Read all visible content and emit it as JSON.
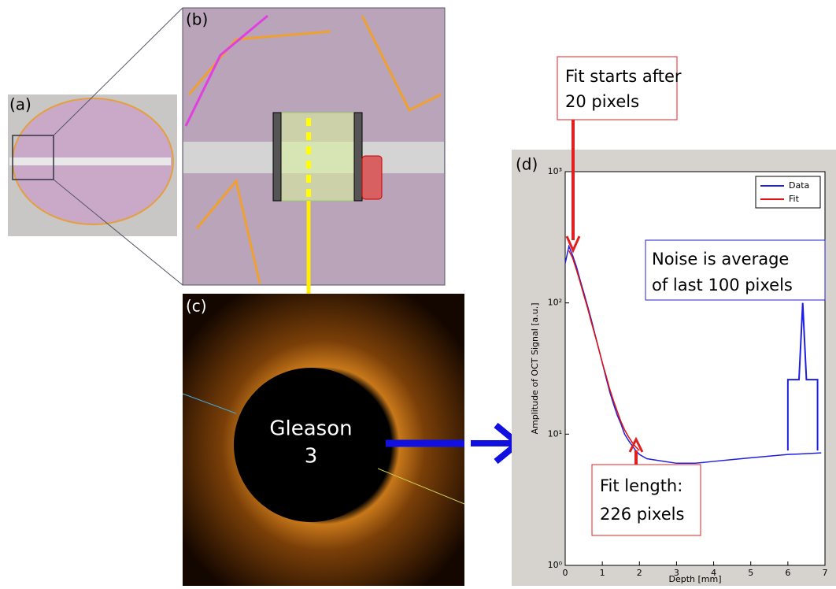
{
  "panels": {
    "labels": [
      "(a)",
      "(b)",
      "(c)"
    ],
    "oct_text": [
      "Gleason",
      "3"
    ]
  },
  "chart_data": {
    "type": "line",
    "label": "(d)",
    "xlabel": "Depth [mm]",
    "ylabel": "Amplitude of OCT Signal [a.u.]",
    "xlim": [
      0,
      7
    ],
    "xticks": [
      0,
      1,
      2,
      3,
      4,
      5,
      6,
      7
    ],
    "ylim": [
      1,
      1000
    ],
    "log_y": true,
    "yticks": [
      {
        "value": 1,
        "label": "10⁰"
      },
      {
        "value": 10,
        "label": "10¹"
      },
      {
        "value": 100,
        "label": "10²"
      },
      {
        "value": 1000,
        "label": "10³"
      }
    ],
    "legend": "upper right",
    "series": [
      {
        "name": "Data",
        "color": "#1f1fe0",
        "x": [
          0,
          0.1,
          0.2,
          0.3,
          0.4,
          0.5,
          0.6,
          0.7,
          0.8,
          0.9,
          1.0,
          1.1,
          1.2,
          1.3,
          1.4,
          1.5,
          1.6,
          1.7,
          1.8,
          1.9,
          2.0,
          2.2,
          2.5,
          3.0,
          3.5,
          4.0,
          4.5,
          5.0,
          5.5,
          6.0,
          6.5,
          6.9
        ],
        "values": [
          200,
          270,
          230,
          190,
          150,
          120,
          95,
          75,
          58,
          45,
          35,
          27,
          21,
          17,
          14,
          12,
          10,
          9,
          8.2,
          7.5,
          7,
          6.5,
          6.3,
          6,
          6,
          6.2,
          6.4,
          6.6,
          6.8,
          7,
          7.1,
          7.2
        ]
      },
      {
        "name": "Fit",
        "color": "#e01010",
        "x": [
          0.1,
          0.2,
          0.3,
          0.4,
          0.5,
          0.6,
          0.7,
          0.8,
          0.9,
          1.0,
          1.1,
          1.2,
          1.3,
          1.4,
          1.5,
          1.6,
          1.7,
          1.8,
          1.9,
          2.0
        ],
        "values": [
          250,
          220,
          180,
          145,
          115,
          92,
          72,
          57,
          45,
          35,
          28,
          22,
          18,
          15,
          12.5,
          10.8,
          9.6,
          8.7,
          8,
          7.5
        ]
      }
    ],
    "noise_bracket": {
      "color": "#1f1fe0",
      "x": [
        6.0,
        6.0,
        6.3,
        6.4,
        6.5,
        6.8,
        6.8
      ],
      "values": [
        7.5,
        26,
        26,
        100,
        26,
        26,
        7.5
      ]
    },
    "annotations": [
      {
        "lines": [
          "Fit starts after",
          "20 pixels"
        ]
      },
      {
        "lines": [
          "Noise is average",
          "of last 100 pixels"
        ]
      },
      {
        "lines": [
          "Fit length:",
          "226 pixels"
        ]
      }
    ]
  }
}
